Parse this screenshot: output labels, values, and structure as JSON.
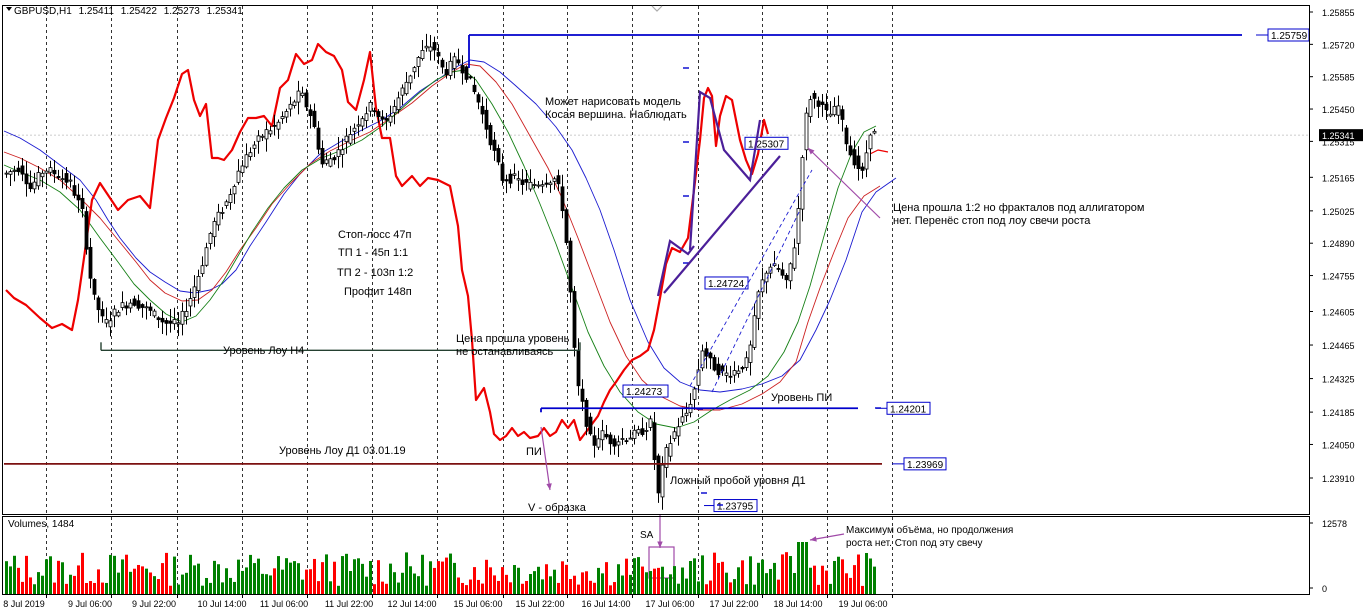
{
  "window": {
    "symbol_title": "GBPUSD,H1",
    "ohlc": [
      "1.25411",
      "1.25422",
      "1.25273",
      "1.25341"
    ]
  },
  "chart_data": [
    {
      "type": "candlestick",
      "title": "GBPUSD,H1",
      "series": [
        {
          "name": "GBPUSD"
        },
        {
          "name": "alligator-jaw"
        },
        {
          "name": "alligator-teeth"
        },
        {
          "name": "alligator-lips"
        },
        {
          "name": "upper-timeframe-overlay"
        }
      ],
      "ylim": [
        1.2385,
        1.2587
      ],
      "y_ticks": [
        "1.25855",
        "1.25720",
        "1.25585",
        "1.25450",
        "1.25315",
        "1.25165",
        "1.25025",
        "1.24890",
        "1.24755",
        "1.24605",
        "1.24465",
        "1.24325",
        "1.24185",
        "1.24050",
        "1.23910"
      ],
      "current_price": "1.25341",
      "grid": "vertical-dashed",
      "levels": [
        {
          "value": 1.25759,
          "label": "1.25759"
        },
        {
          "value": 1.24201,
          "label": "1.24201"
        },
        {
          "value": 1.23969,
          "label": "1.23969"
        },
        {
          "value": 1.24443,
          "label": ""
        }
      ],
      "price_labels": [
        {
          "value": 1.25307,
          "label": "1.25307"
        },
        {
          "value": 1.24724,
          "label": "1.24724"
        },
        {
          "value": 1.24273,
          "label": "1.24273"
        },
        {
          "value": 1.23795,
          "label": "1.23795"
        }
      ],
      "annotations": [
        "Стоп-лосс 47п",
        "ТП 1 - 45п 1:1",
        "ТП 2 - 103п 1:2",
        "Профит 148п",
        "Уровень Лоу Н4",
        "Цена прошла уровень",
        "не останавливаясь",
        "Может нарисовать модель",
        "Косая вершина. Наблюдать",
        "Цена прошла 1:2 но фракталов под аллигатором",
        "нет. Перенёс стоп под лоу свечи роста",
        "Уровень ПИ",
        "Уровень Лоу Д1 03.01.19",
        "ПИ",
        "V - образка",
        "Ложный пробой уровня Д1"
      ]
    },
    {
      "type": "bar",
      "title": "Volumes, 1484",
      "y_ticks": [
        "12578",
        "0"
      ],
      "ylim": [
        0,
        12578
      ],
      "annotations": [
        "SA",
        "Максимум объёма, но продолжения",
        "роста нет. Стоп под эту свечу"
      ]
    }
  ],
  "x_axis": {
    "labels": [
      "8 Jul 2019",
      "9 Jul 06:00",
      "9 Jul 22:00",
      "10 Jul 14:00",
      "11 Jul 06:00",
      "11 Jul 22:00",
      "12 Jul 14:00",
      "15 Jul 06:00",
      "15 Jul 22:00",
      "16 Jul 14:00",
      "17 Jul 06:00",
      "17 Jul 22:00",
      "18 Jul 14:00",
      "19 Jul 06:00"
    ]
  },
  "colors": {
    "background": "#ffffff",
    "bull": "#008000",
    "bear": "#ff0000",
    "level_blue": "#0000cc",
    "level_maroon": "#7b1010",
    "level_dark": "#244030",
    "upper_tf": "#ee0000",
    "jaw": "#1b1bd0",
    "teeth": "#cc2020",
    "lips": "#168016",
    "model": "#4b1f99",
    "arrow": "#a04aa8"
  }
}
